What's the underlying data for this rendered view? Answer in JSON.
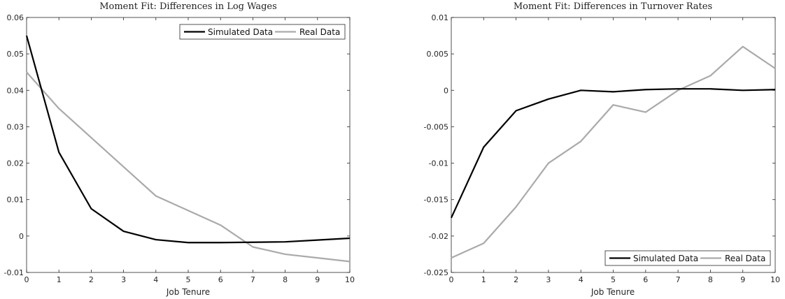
{
  "chart_data": [
    {
      "type": "line",
      "title": "Moment Fit: Differences in Log Wages",
      "xlabel": "Job Tenure",
      "ylabel": "",
      "xlim": [
        0,
        10
      ],
      "ylim": [
        -0.01,
        0.06
      ],
      "xticks": [
        0,
        1,
        2,
        3,
        4,
        5,
        6,
        7,
        8,
        9,
        10
      ],
      "xtick_labels": [
        "0",
        "1",
        "2",
        "3",
        "4",
        "5",
        "6",
        "7",
        "8",
        "9",
        "10"
      ],
      "yticks": [
        -0.01,
        0,
        0.01,
        0.02,
        0.03,
        0.04,
        0.05,
        0.06
      ],
      "ytick_labels": [
        "-0.01",
        "0",
        "0.01",
        "0.02",
        "0.03",
        "0.04",
        "0.05",
        "0.06"
      ],
      "grid": false,
      "legend_position": "top-right",
      "x": [
        0,
        1,
        2,
        3,
        4,
        5,
        6,
        7,
        8,
        9,
        10
      ],
      "series": [
        {
          "name": "Simulated Data",
          "color": "#000000",
          "values": [
            0.055,
            0.023,
            0.0075,
            0.0013,
            -0.001,
            -0.0018,
            -0.0018,
            -0.0017,
            -0.0016,
            -0.0011,
            -0.0006
          ]
        },
        {
          "name": "Real Data",
          "color": "#aaaaaa",
          "values": [
            0.045,
            0.035,
            0.027,
            0.019,
            0.011,
            0.007,
            0.003,
            -0.003,
            -0.005,
            -0.006,
            -0.007
          ]
        }
      ]
    },
    {
      "type": "line",
      "title": "Moment Fit: Differences in Turnover Rates",
      "xlabel": "Job Tenure",
      "ylabel": "",
      "xlim": [
        0,
        10
      ],
      "ylim": [
        -0.025,
        0.01
      ],
      "xticks": [
        0,
        1,
        2,
        3,
        4,
        5,
        6,
        7,
        8,
        9,
        10
      ],
      "xtick_labels": [
        "0",
        "1",
        "2",
        "3",
        "4",
        "5",
        "6",
        "7",
        "8",
        "9",
        "10"
      ],
      "yticks": [
        -0.025,
        -0.02,
        -0.015,
        -0.01,
        -0.005,
        0,
        0.005,
        0.01
      ],
      "ytick_labels": [
        "-0.025",
        "-0.02",
        "-0.015",
        "-0.01",
        "-0.005",
        "0",
        "0.005",
        "0.01"
      ],
      "grid": false,
      "legend_position": "bottom-right",
      "x": [
        0,
        1,
        2,
        3,
        4,
        5,
        6,
        7,
        8,
        9,
        10
      ],
      "series": [
        {
          "name": "Simulated Data",
          "color": "#000000",
          "values": [
            -0.0175,
            -0.0078,
            -0.0028,
            -0.0012,
            0.0,
            -0.0002,
            0.0001,
            0.0002,
            0.0002,
            0.0,
            0.0001
          ]
        },
        {
          "name": "Real Data",
          "color": "#aaaaaa",
          "values": [
            -0.023,
            -0.021,
            -0.016,
            -0.01,
            -0.007,
            -0.002,
            -0.003,
            0.0,
            0.002,
            0.006,
            0.003
          ]
        }
      ]
    }
  ]
}
